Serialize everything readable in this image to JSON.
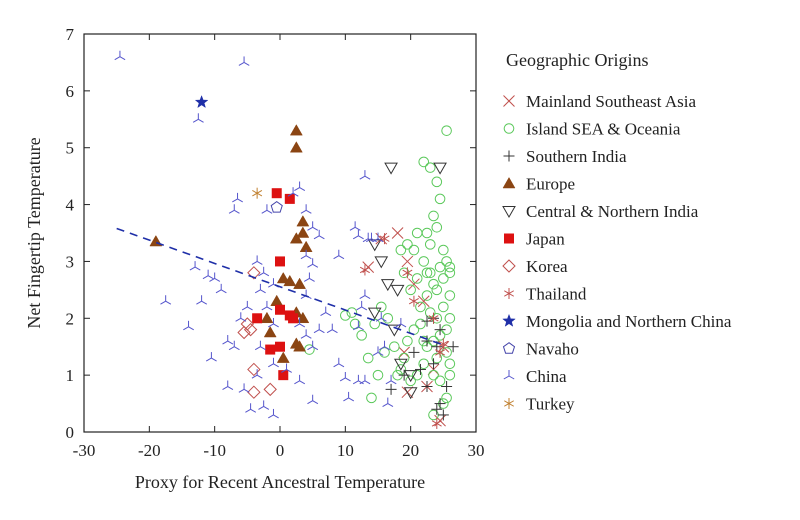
{
  "chart_data": {
    "type": "scatter",
    "title": "",
    "xlabel": "Proxy for Recent Ancestral Temperature",
    "ylabel": "Net Fingertip Temperature",
    "xlim": [
      -30,
      30
    ],
    "ylim": [
      0,
      7
    ],
    "xticks": [
      -30,
      -20,
      -10,
      0,
      10,
      20,
      30
    ],
    "yticks": [
      0,
      1,
      2,
      3,
      4,
      5,
      6,
      7
    ],
    "grid": false,
    "legend_title": "Geographic Origins",
    "legend_position": "right-outside",
    "trendline": {
      "style": "dashed",
      "color": "#1f2fa8",
      "x": [
        -25,
        25
      ],
      "y": [
        3.58,
        1.53
      ]
    },
    "series": [
      {
        "name": "Mainland Southeast Asia",
        "marker": "x",
        "color": "#c0504d",
        "points": [
          [
            13.5,
            2.9
          ],
          [
            15.5,
            3.4
          ],
          [
            18,
            3.5
          ],
          [
            19.5,
            3.0
          ],
          [
            20.5,
            2.6
          ],
          [
            22,
            2.3
          ],
          [
            19,
            1.4
          ],
          [
            19.5,
            0.7
          ],
          [
            22.5,
            0.8
          ],
          [
            23.5,
            1.1
          ],
          [
            24.5,
            0.2
          ],
          [
            25,
            1.5
          ]
        ]
      },
      {
        "name": "Island SEA & Oceania",
        "marker": "circle",
        "color": "#5cc95c",
        "points": [
          [
            22,
            4.75
          ],
          [
            23,
            4.65
          ],
          [
            24,
            4.4
          ],
          [
            24.5,
            4.1
          ],
          [
            23.5,
            3.8
          ],
          [
            25.5,
            5.3
          ],
          [
            22.5,
            3.5
          ],
          [
            23,
            3.3
          ],
          [
            24,
            3.6
          ],
          [
            25,
            3.2
          ],
          [
            25.5,
            3.0
          ],
          [
            26,
            2.8
          ],
          [
            24.5,
            2.9
          ],
          [
            23.5,
            2.6
          ],
          [
            22.5,
            2.4
          ],
          [
            21.5,
            2.2
          ],
          [
            23,
            2.1
          ],
          [
            24,
            2.0
          ],
          [
            25,
            2.2
          ],
          [
            26,
            2.0
          ],
          [
            25.5,
            1.8
          ],
          [
            24.5,
            1.7
          ],
          [
            23.5,
            1.6
          ],
          [
            22.5,
            1.5
          ],
          [
            21.5,
            1.9
          ],
          [
            20.5,
            1.8
          ],
          [
            19.5,
            1.6
          ],
          [
            19,
            1.3
          ],
          [
            18.5,
            1.1
          ],
          [
            20,
            2.5
          ],
          [
            19,
            2.8
          ],
          [
            18.5,
            3.2
          ],
          [
            19.5,
            3.3
          ],
          [
            21,
            3.5
          ],
          [
            22,
            3.0
          ],
          [
            23,
            2.8
          ],
          [
            24,
            2.5
          ],
          [
            25,
            2.7
          ],
          [
            26,
            2.4
          ],
          [
            25.5,
            1.4
          ],
          [
            26,
            1.2
          ],
          [
            26,
            1.0
          ],
          [
            25.5,
            0.6
          ],
          [
            25,
            0.5
          ],
          [
            24.5,
            0.9
          ],
          [
            24,
            1.3
          ],
          [
            23.5,
            1.0
          ],
          [
            22,
            1.2
          ],
          [
            21,
            1.0
          ],
          [
            20,
            0.9
          ],
          [
            18,
            1.0
          ],
          [
            17.5,
            1.5
          ],
          [
            16.5,
            2.0
          ],
          [
            15.5,
            2.2
          ],
          [
            14.5,
            1.9
          ],
          [
            13.5,
            1.3
          ],
          [
            14,
            0.6
          ],
          [
            12.5,
            1.7
          ],
          [
            11.5,
            1.9
          ],
          [
            11,
            2.1
          ],
          [
            10,
            2.05
          ],
          [
            16,
            1.4
          ],
          [
            15,
            1.0
          ],
          [
            26,
            2.9
          ],
          [
            22.5,
            2.8
          ],
          [
            21,
            2.7
          ],
          [
            20.5,
            3.2
          ],
          [
            22,
            1.6
          ],
          [
            23.5,
            0.3
          ],
          [
            4.5,
            1.45
          ]
        ]
      },
      {
        "name": "Southern India",
        "marker": "plus",
        "color": "#333333",
        "points": [
          [
            22.5,
            1.95
          ],
          [
            23.5,
            2.0
          ],
          [
            24.5,
            1.8
          ],
          [
            22.5,
            1.6
          ],
          [
            24,
            1.5
          ],
          [
            23.5,
            1.2
          ],
          [
            21.5,
            1.1
          ],
          [
            22.5,
            0.8
          ],
          [
            24.5,
            0.5
          ],
          [
            25.5,
            0.8
          ],
          [
            20.5,
            1.4
          ],
          [
            19,
            1.0
          ],
          [
            17,
            0.75
          ],
          [
            24,
            0.4
          ],
          [
            25,
            0.3
          ],
          [
            26.5,
            1.5
          ]
        ]
      },
      {
        "name": "Europe",
        "marker": "triangle-up",
        "color": "#8b4513",
        "points": [
          [
            -19,
            3.35
          ],
          [
            2.5,
            5.3
          ],
          [
            2.5,
            5.0
          ],
          [
            3.5,
            3.7
          ],
          [
            3.5,
            3.5
          ],
          [
            2.5,
            3.4
          ],
          [
            4,
            3.25
          ],
          [
            0.5,
            2.7
          ],
          [
            1.5,
            2.65
          ],
          [
            3,
            2.6
          ],
          [
            -0.5,
            2.3
          ],
          [
            2.5,
            2.1
          ],
          [
            3.5,
            2.0
          ],
          [
            -2,
            2.0
          ],
          [
            -1.5,
            1.75
          ],
          [
            2.5,
            1.55
          ],
          [
            3,
            1.5
          ],
          [
            0.5,
            1.3
          ]
        ]
      },
      {
        "name": "Central & Northern India",
        "marker": "triangle-down",
        "color": "#333333",
        "points": [
          [
            17,
            4.65
          ],
          [
            24.5,
            4.65
          ],
          [
            14.5,
            3.3
          ],
          [
            15.5,
            3.0
          ],
          [
            16.5,
            2.6
          ],
          [
            18,
            2.5
          ],
          [
            14.5,
            2.1
          ],
          [
            17.5,
            1.8
          ],
          [
            18.5,
            1.2
          ],
          [
            20,
            1.0
          ],
          [
            20,
            0.7
          ]
        ]
      },
      {
        "name": "Japan",
        "marker": "square",
        "color": "#dd1111",
        "points": [
          [
            -0.5,
            4.2
          ],
          [
            1.5,
            4.1
          ],
          [
            0,
            3.0
          ],
          [
            0,
            2.15
          ],
          [
            1.5,
            2.05
          ],
          [
            2,
            2.0
          ],
          [
            -3.5,
            2.0
          ],
          [
            -1.5,
            1.45
          ],
          [
            0,
            1.5
          ],
          [
            0.5,
            1.0
          ]
        ]
      },
      {
        "name": "Korea",
        "marker": "diamond",
        "color": "#c0504d",
        "points": [
          [
            -4,
            2.8
          ],
          [
            -5.5,
            1.75
          ],
          [
            -5,
            1.9
          ],
          [
            -4.5,
            1.8
          ],
          [
            -4,
            1.1
          ],
          [
            -4,
            0.7
          ],
          [
            -1.5,
            0.75
          ]
        ]
      },
      {
        "name": "Thailand",
        "marker": "asterisk",
        "color": "#c0504d",
        "points": [
          [
            13,
            2.85
          ],
          [
            16,
            3.4
          ],
          [
            19.5,
            2.8
          ],
          [
            20.5,
            2.3
          ],
          [
            23.5,
            2.0
          ],
          [
            25,
            1.55
          ],
          [
            24.5,
            1.4
          ],
          [
            24,
            0.15
          ]
        ]
      },
      {
        "name": "Mongolia and Northern China",
        "marker": "star",
        "color": "#1f2fa8",
        "points": [
          [
            -12,
            5.8
          ]
        ]
      },
      {
        "name": "Navaho",
        "marker": "pentagon",
        "color": "#4444aa",
        "points": [
          [
            -0.5,
            3.95
          ]
        ]
      },
      {
        "name": "China",
        "marker": "tri-y",
        "color": "#5555cc",
        "points": [
          [
            -24.5,
            6.6
          ],
          [
            -5.5,
            6.5
          ],
          [
            -12.5,
            5.5
          ],
          [
            -13,
            2.9
          ],
          [
            -11,
            2.75
          ],
          [
            -10,
            2.7
          ],
          [
            -9,
            2.5
          ],
          [
            -12,
            2.3
          ],
          [
            -14,
            1.85
          ],
          [
            -17.5,
            2.3
          ],
          [
            -8,
            1.6
          ],
          [
            -7,
            1.5
          ],
          [
            -8,
            0.8
          ],
          [
            -5.5,
            0.75
          ],
          [
            -2,
            3.9
          ],
          [
            -7,
            3.9
          ],
          [
            -6.5,
            4.1
          ],
          [
            2,
            4.2
          ],
          [
            3,
            4.3
          ],
          [
            4,
            3.9
          ],
          [
            5,
            3.6
          ],
          [
            6,
            3.45
          ],
          [
            4,
            3.1
          ],
          [
            5,
            2.95
          ],
          [
            4.5,
            2.7
          ],
          [
            4,
            2.4
          ],
          [
            -3.5,
            3.0
          ],
          [
            -2.5,
            2.8
          ],
          [
            -1,
            2.6
          ],
          [
            -3,
            2.5
          ],
          [
            -2,
            2.2
          ],
          [
            -1,
            1.9
          ],
          [
            3,
            1.9
          ],
          [
            4,
            1.7
          ],
          [
            5,
            1.5
          ],
          [
            6,
            1.8
          ],
          [
            -3,
            1.5
          ],
          [
            -1,
            1.2
          ],
          [
            1,
            1.1
          ],
          [
            3,
            0.9
          ],
          [
            -2.5,
            0.45
          ],
          [
            -4.5,
            0.4
          ],
          [
            -1,
            0.3
          ],
          [
            5,
            0.55
          ],
          [
            9,
            1.2
          ],
          [
            10,
            0.95
          ],
          [
            12,
            0.9
          ],
          [
            13,
            0.9
          ],
          [
            12,
            1.85
          ],
          [
            12.5,
            2.2
          ],
          [
            13,
            2.4
          ],
          [
            11.5,
            3.6
          ],
          [
            12,
            3.45
          ],
          [
            13.5,
            3.4
          ],
          [
            13,
            4.5
          ],
          [
            14,
            3.4
          ],
          [
            15,
            3.4
          ],
          [
            15.5,
            2.0
          ],
          [
            15,
            1.4
          ],
          [
            16,
            1.5
          ],
          [
            16.5,
            0.5
          ],
          [
            10.5,
            0.6
          ],
          [
            8,
            1.8
          ],
          [
            9,
            3.1
          ],
          [
            17,
            0.9
          ],
          [
            18.5,
            1.9
          ],
          [
            -5,
            2.2
          ],
          [
            -6,
            2.0
          ],
          [
            -3.5,
            1.0
          ],
          [
            7,
            2.1
          ],
          [
            -10.5,
            1.3
          ]
        ]
      },
      {
        "name": "Turkey",
        "marker": "asterisk",
        "color": "#c08030",
        "points": [
          [
            -3.5,
            4.2
          ]
        ]
      }
    ]
  }
}
